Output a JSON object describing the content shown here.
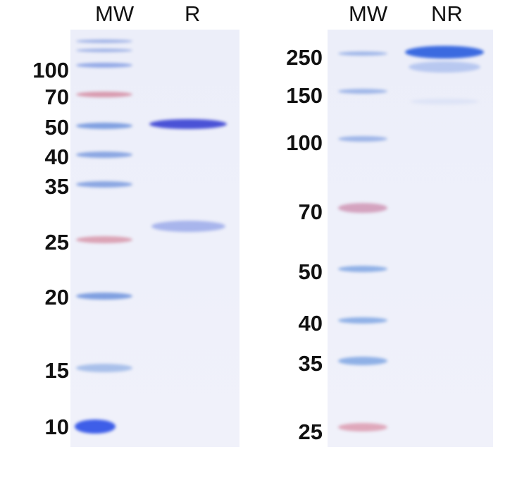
{
  "gels": [
    {
      "lanes": [
        "MW",
        "R"
      ],
      "markers": [
        "100",
        "70",
        "50",
        "40",
        "35",
        "25",
        "20",
        "15",
        "10"
      ]
    },
    {
      "lanes": [
        "MW",
        "NR"
      ],
      "markers": [
        "250",
        "150",
        "100",
        "70",
        "50",
        "40",
        "35",
        "25"
      ]
    }
  ],
  "colors": {
    "ladder_blue": "#7f9fe0",
    "ladder_pink": "#d89aae",
    "sample_band": "#4a52d6",
    "nr_band": "#3b6ae0"
  }
}
